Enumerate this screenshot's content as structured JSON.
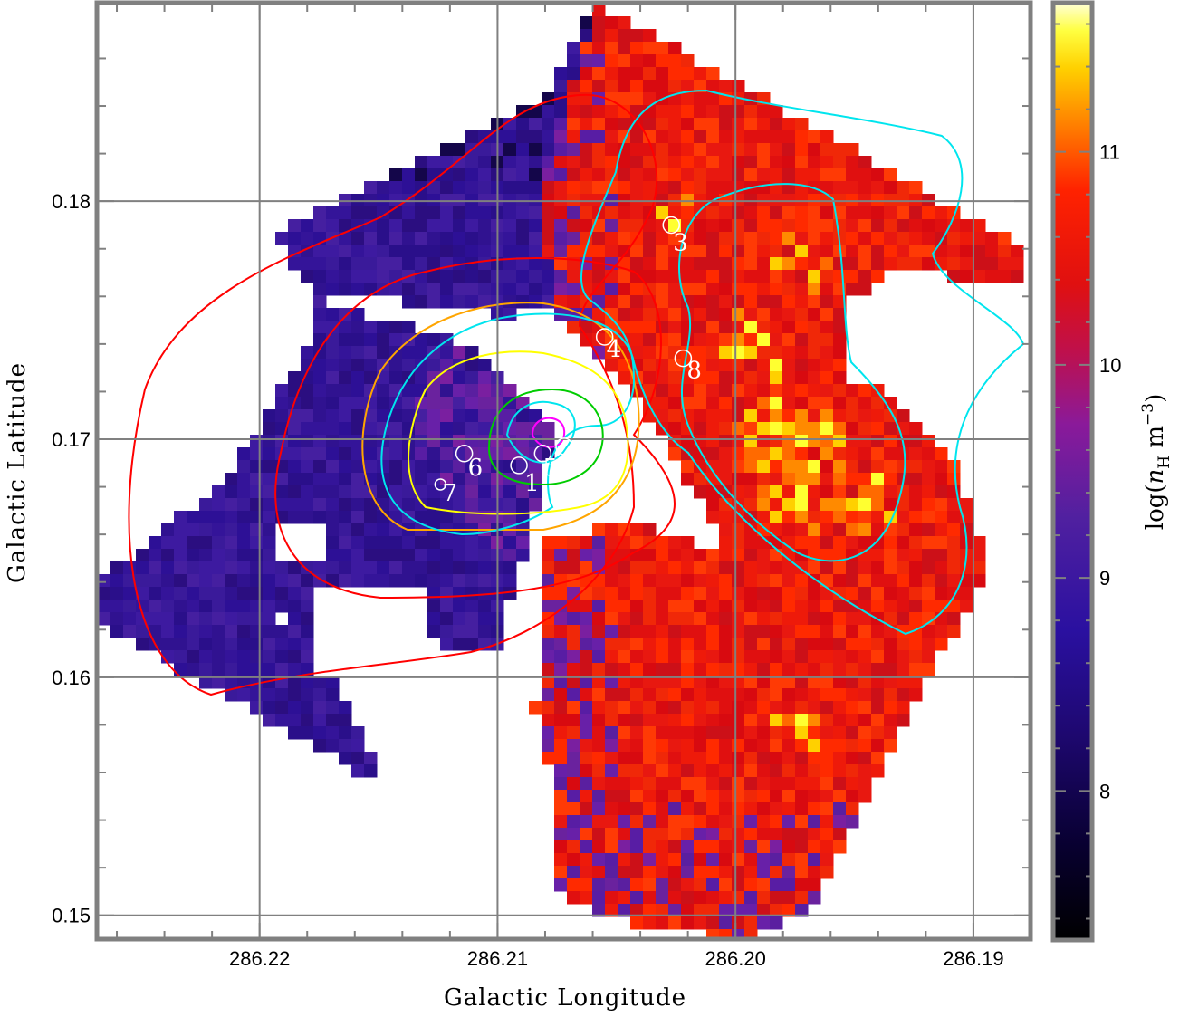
{
  "chart_data": {
    "type": "heatmap",
    "title": "",
    "xlabel": "Galactic Longitude",
    "ylabel": "Galactic Latitude",
    "colorbar_label": "log(n_H m^-3)",
    "x_reversed": true,
    "xlim": [
      286.2268,
      286.1876
    ],
    "ylim": [
      0.149,
      0.1883
    ],
    "x_ticks": [
      286.22,
      286.21,
      286.2,
      286.19
    ],
    "x_tick_labels": [
      "286.22",
      "286.21",
      "286.20",
      "286.19"
    ],
    "y_ticks": [
      0.15,
      0.16,
      0.17,
      0.18
    ],
    "y_tick_labels": [
      "0.15",
      "0.16",
      "0.17",
      "0.18"
    ],
    "colorbar": {
      "range": [
        7.3,
        11.7
      ],
      "ticks": [
        8,
        9,
        10,
        11
      ],
      "tick_labels": [
        "8",
        "9",
        "10",
        "11"
      ],
      "colormap": "heat (black-blue-purple-red-yellow-white)"
    },
    "grid": true,
    "sources": [
      {
        "label": "1",
        "l": 286.2091,
        "b": 0.1689
      },
      {
        "label": "2",
        "l": 286.2072,
        "b": 0.1697
      },
      {
        "label": "3",
        "l": 286.2027,
        "b": 0.179
      },
      {
        "label": "4",
        "l": 286.2055,
        "b": 0.1743
      },
      {
        "label": "5",
        "l": 286.2081,
        "b": 0.1694
      },
      {
        "label": "6",
        "l": 286.2114,
        "b": 0.1694
      },
      {
        "label": "7",
        "l": 286.2124,
        "b": 0.1681
      },
      {
        "label": "8",
        "l": 286.2022,
        "b": 0.1734
      }
    ],
    "contours": [
      {
        "color": "#ff0000",
        "level": 1
      },
      {
        "color": "#ff0000",
        "level": 2
      },
      {
        "color": "#ffa500",
        "level": 3
      },
      {
        "color": "#00e5ee",
        "level": 4
      },
      {
        "color": "#ffff00",
        "level": 5
      },
      {
        "color": "#00cc00",
        "level": 6
      },
      {
        "color": "#00e5ee",
        "level": 7
      },
      {
        "color": "#ff00ff",
        "level": 8
      }
    ]
  },
  "colors": {
    "frame": "#808080",
    "grid": "#808080",
    "background": "#ffffff"
  }
}
